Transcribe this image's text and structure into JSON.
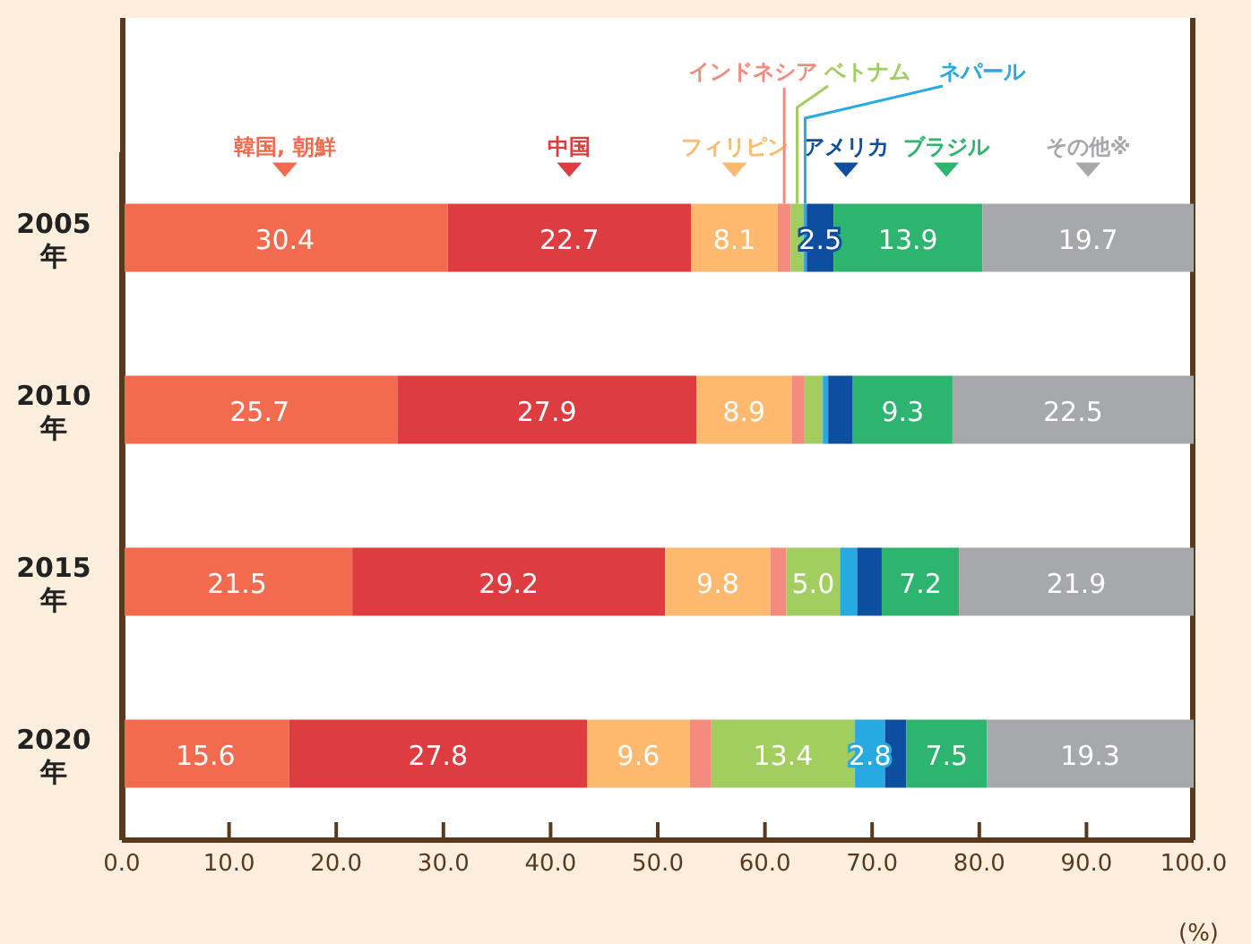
{
  "chart_data": {
    "type": "bar",
    "orientation": "horizontal",
    "stacked": true,
    "categories": [
      "2005年",
      "2010年",
      "2015年",
      "2020年"
    ],
    "xlabel": "(%)",
    "xlim": [
      0,
      100
    ],
    "xticks": [
      {
        "value": 0,
        "label": "0.0"
      },
      {
        "value": 10,
        "label": "10.0"
      },
      {
        "value": 20,
        "label": "20.0"
      },
      {
        "value": 30,
        "label": "30.0"
      },
      {
        "value": 40,
        "label": "40.0"
      },
      {
        "value": 50,
        "label": "50.0"
      },
      {
        "value": 60,
        "label": "60.0"
      },
      {
        "value": 70,
        "label": "70.0"
      },
      {
        "value": 80,
        "label": "80.0"
      },
      {
        "value": 90,
        "label": "90.0"
      },
      {
        "value": 100,
        "label": "100.0"
      }
    ],
    "grid": false,
    "legend": "top",
    "series": [
      {
        "name": "韓国, 朝鮮",
        "color": "#f26b4f",
        "values": [
          30.4,
          25.7,
          21.5,
          15.6
        ],
        "value_labels": [
          "30.4",
          "25.7",
          "21.5",
          "15.6"
        ]
      },
      {
        "name": "中国",
        "color": "#dd3d40",
        "values": [
          22.7,
          27.9,
          29.2,
          27.8
        ],
        "value_labels": [
          "22.7",
          "27.9",
          "29.2",
          "27.8"
        ]
      },
      {
        "name": "フィリピン",
        "color": "#fdb96e",
        "values": [
          8.1,
          8.9,
          9.8,
          9.6
        ],
        "value_labels": [
          "8.1",
          "8.9",
          "9.8",
          "9.6"
        ]
      },
      {
        "name": "インドネシア",
        "color": "#f58b7f",
        "values": [
          1.2,
          1.2,
          1.5,
          2.0
        ],
        "value_labels": [
          null,
          null,
          null,
          null
        ]
      },
      {
        "name": "ベトナム",
        "color": "#a2cd5f",
        "values": [
          1.2,
          1.7,
          5.0,
          13.4
        ],
        "value_labels": [
          null,
          null,
          "5.0",
          "13.4"
        ]
      },
      {
        "name": "ネパール",
        "color": "#27aae1",
        "values": [
          0.3,
          0.5,
          1.6,
          2.8
        ],
        "value_labels": [
          null,
          null,
          null,
          "2.8"
        ]
      },
      {
        "name": "アメリカ",
        "color": "#0d4ea0",
        "values": [
          2.5,
          2.3,
          2.3,
          2.0
        ],
        "value_labels": [
          "2.5",
          null,
          null,
          null
        ]
      },
      {
        "name": "ブラジル",
        "color": "#2db56f",
        "values": [
          13.9,
          9.3,
          7.2,
          7.5
        ],
        "value_labels": [
          "13.9",
          "9.3",
          "7.2",
          "7.5"
        ]
      },
      {
        "name": "その他※",
        "color": "#a7a8ab",
        "values": [
          19.7,
          22.5,
          21.9,
          19.3
        ],
        "value_labels": [
          "19.7",
          "22.5",
          "21.9",
          "19.3"
        ]
      }
    ]
  }
}
